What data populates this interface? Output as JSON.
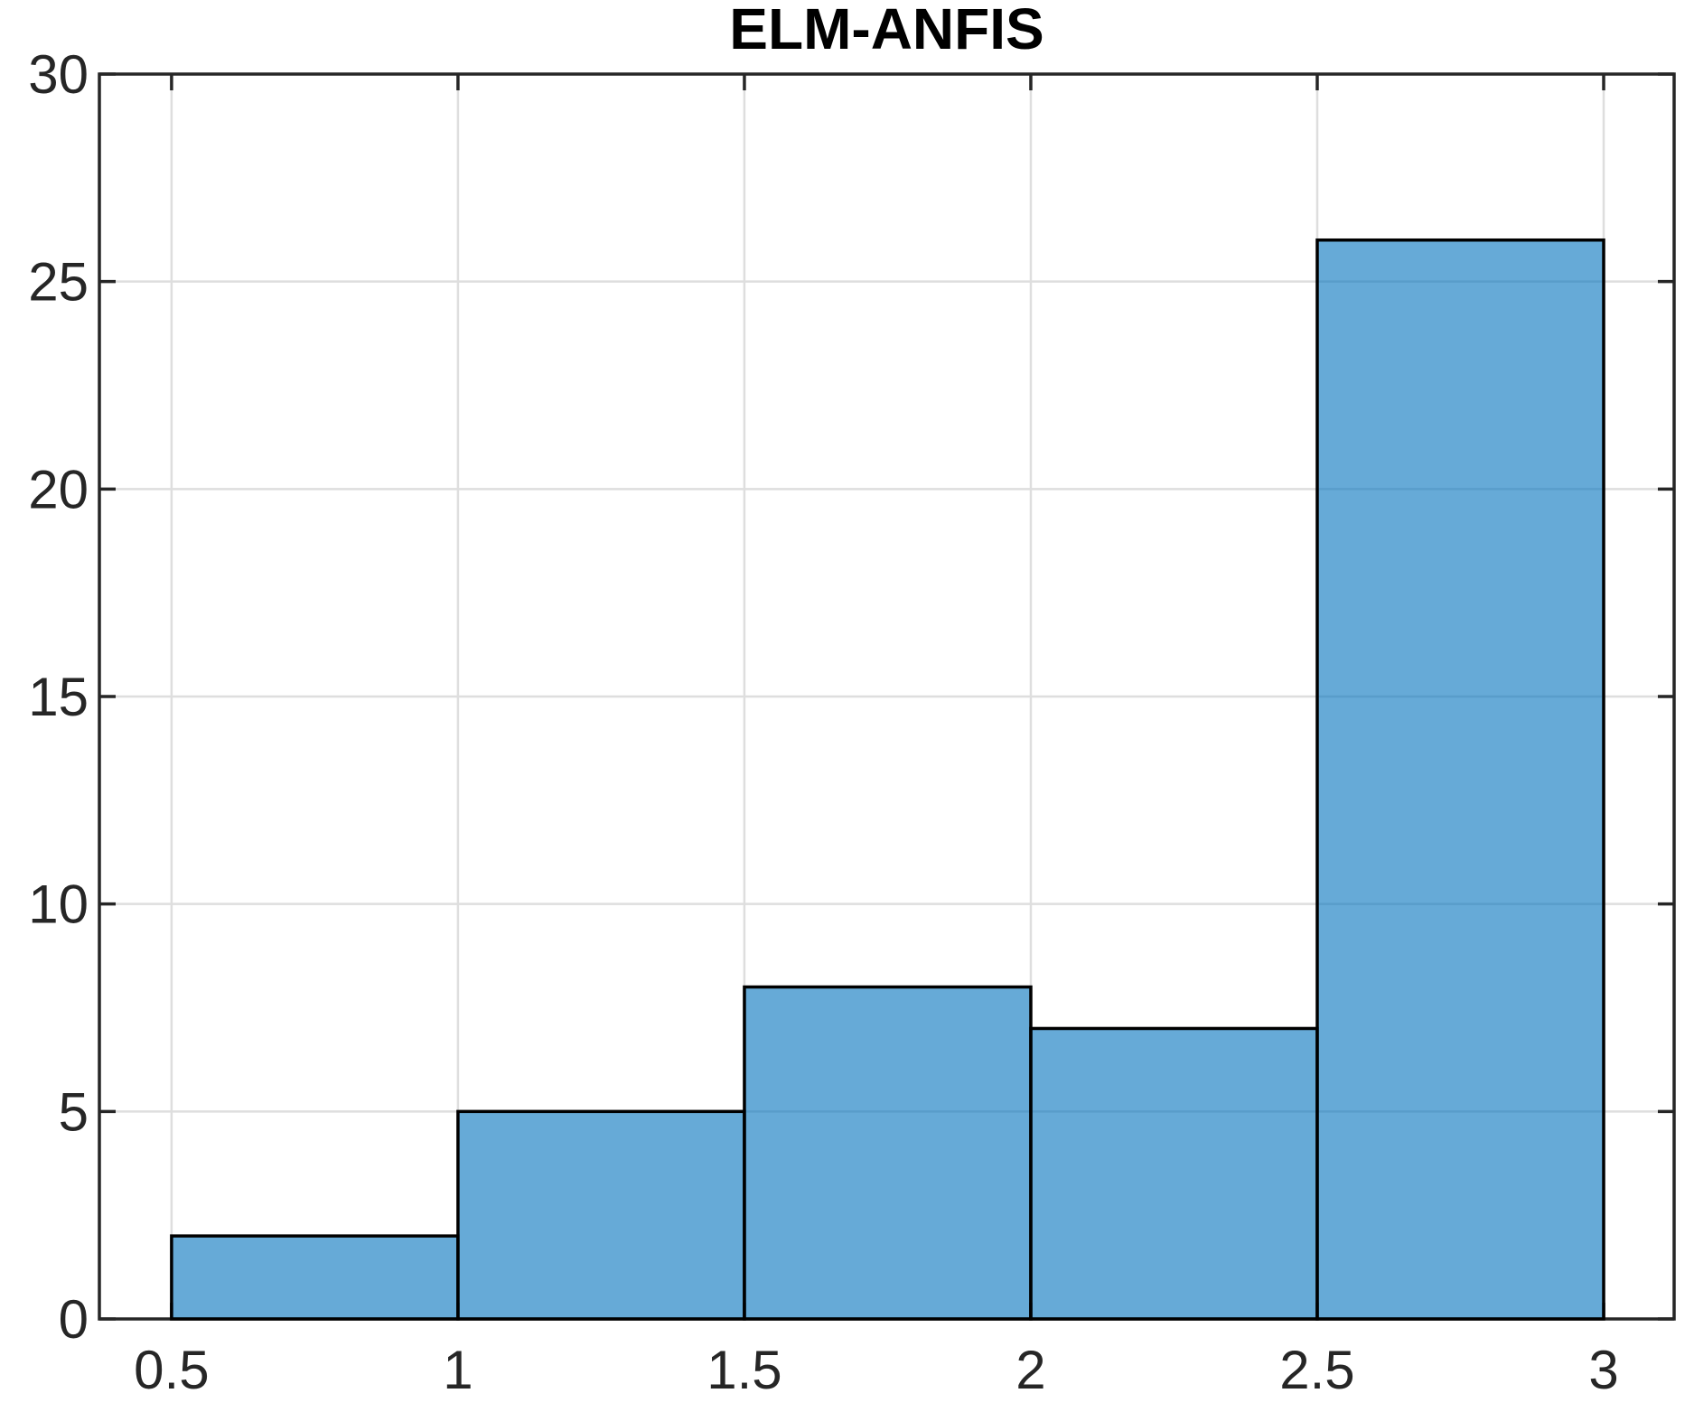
{
  "page": {
    "background": "#FFFFFF"
  },
  "chart_data": {
    "type": "bar",
    "subtype": "histogram",
    "title": "ELM-ANFIS",
    "bin_edges": [
      0.5,
      1,
      1.5,
      2,
      2.5,
      3
    ],
    "values": [
      2,
      5,
      8,
      7,
      26
    ],
    "xlabel": "",
    "ylabel": "",
    "xlim": [
      0.374,
      3.123
    ],
    "ylim": [
      0,
      30
    ],
    "grid": true,
    "legend": "none",
    "xticks": {
      "values": [
        0.5,
        1,
        1.5,
        2,
        2.5,
        3
      ],
      "labels": [
        "0.5",
        "1",
        "1.5",
        "2",
        "2.5",
        "3"
      ]
    },
    "yticks": {
      "values": [
        0,
        5,
        10,
        15,
        20,
        25,
        30
      ],
      "labels": [
        "0",
        "5",
        "10",
        "15",
        "20",
        "25",
        "30"
      ]
    },
    "colors": {
      "bar_fill": "#0072BD",
      "bar_fill_opacity": 0.6,
      "bar_edge": "#000000",
      "grid": "#DEDEDE",
      "axis": "#262626",
      "tick_text": "#262626",
      "title_text": "#000000",
      "background": "#FFFFFF"
    }
  }
}
